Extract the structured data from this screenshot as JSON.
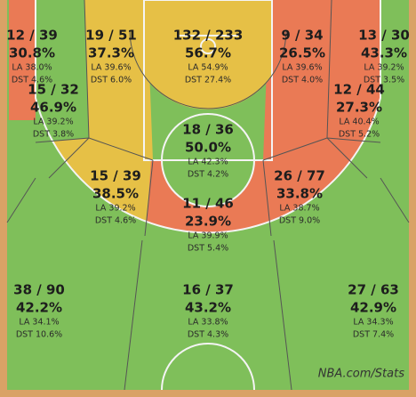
{
  "zones": [
    {
      "shots": "12 / 39",
      "pct": "30.8%",
      "la": "LA 38.0%",
      "dst": "DST 4.6%"
    },
    {
      "shots": "19 / 51",
      "pct": "37.3%",
      "la": "LA 39.6%",
      "dst": "DST 6.0%"
    },
    {
      "shots": "132 / 233",
      "pct": "56.7%",
      "la": "LA 54.9%",
      "dst": "DST 27.4%"
    },
    {
      "shots": "9 / 34",
      "pct": "26.5%",
      "la": "LA 39.6%",
      "dst": "DST 4.0%"
    },
    {
      "shots": "13 / 30",
      "pct": "43.3%",
      "la": "LA 39.2%",
      "dst": "DST 3.5%"
    },
    {
      "shots": "15 / 32",
      "pct": "46.9%",
      "la": "LA 39.2%",
      "dst": "DST 3.8%"
    },
    {
      "shots": "12 / 44",
      "pct": "27.3%",
      "la": "LA 40.4%",
      "dst": "DST 5.2%"
    },
    {
      "shots": "18 / 36",
      "pct": "50.0%",
      "la": "LA 42.3%",
      "dst": "DST 4.2%"
    },
    {
      "shots": "15 / 39",
      "pct": "38.5%",
      "la": "LA 39.2%",
      "dst": "DST 4.6%"
    },
    {
      "shots": "26 / 77",
      "pct": "33.8%",
      "la": "LA 38.7%",
      "dst": "DST 9.0%"
    },
    {
      "shots": "11 / 46",
      "pct": "23.9%",
      "la": "LA 39.9%",
      "dst": "DST 5.4%"
    },
    {
      "shots": "38 / 90",
      "pct": "42.2%",
      "la": "LA 34.1%",
      "dst": "DST 10.6%"
    },
    {
      "shots": "16 / 37",
      "pct": "43.2%",
      "la": "LA 33.8%",
      "dst": "DST 4.3%"
    },
    {
      "shots": "27 / 63",
      "pct": "42.9%",
      "la": "LA 34.3%",
      "dst": "DST 7.4%"
    }
  ],
  "source": "NBA.com/Stats"
}
